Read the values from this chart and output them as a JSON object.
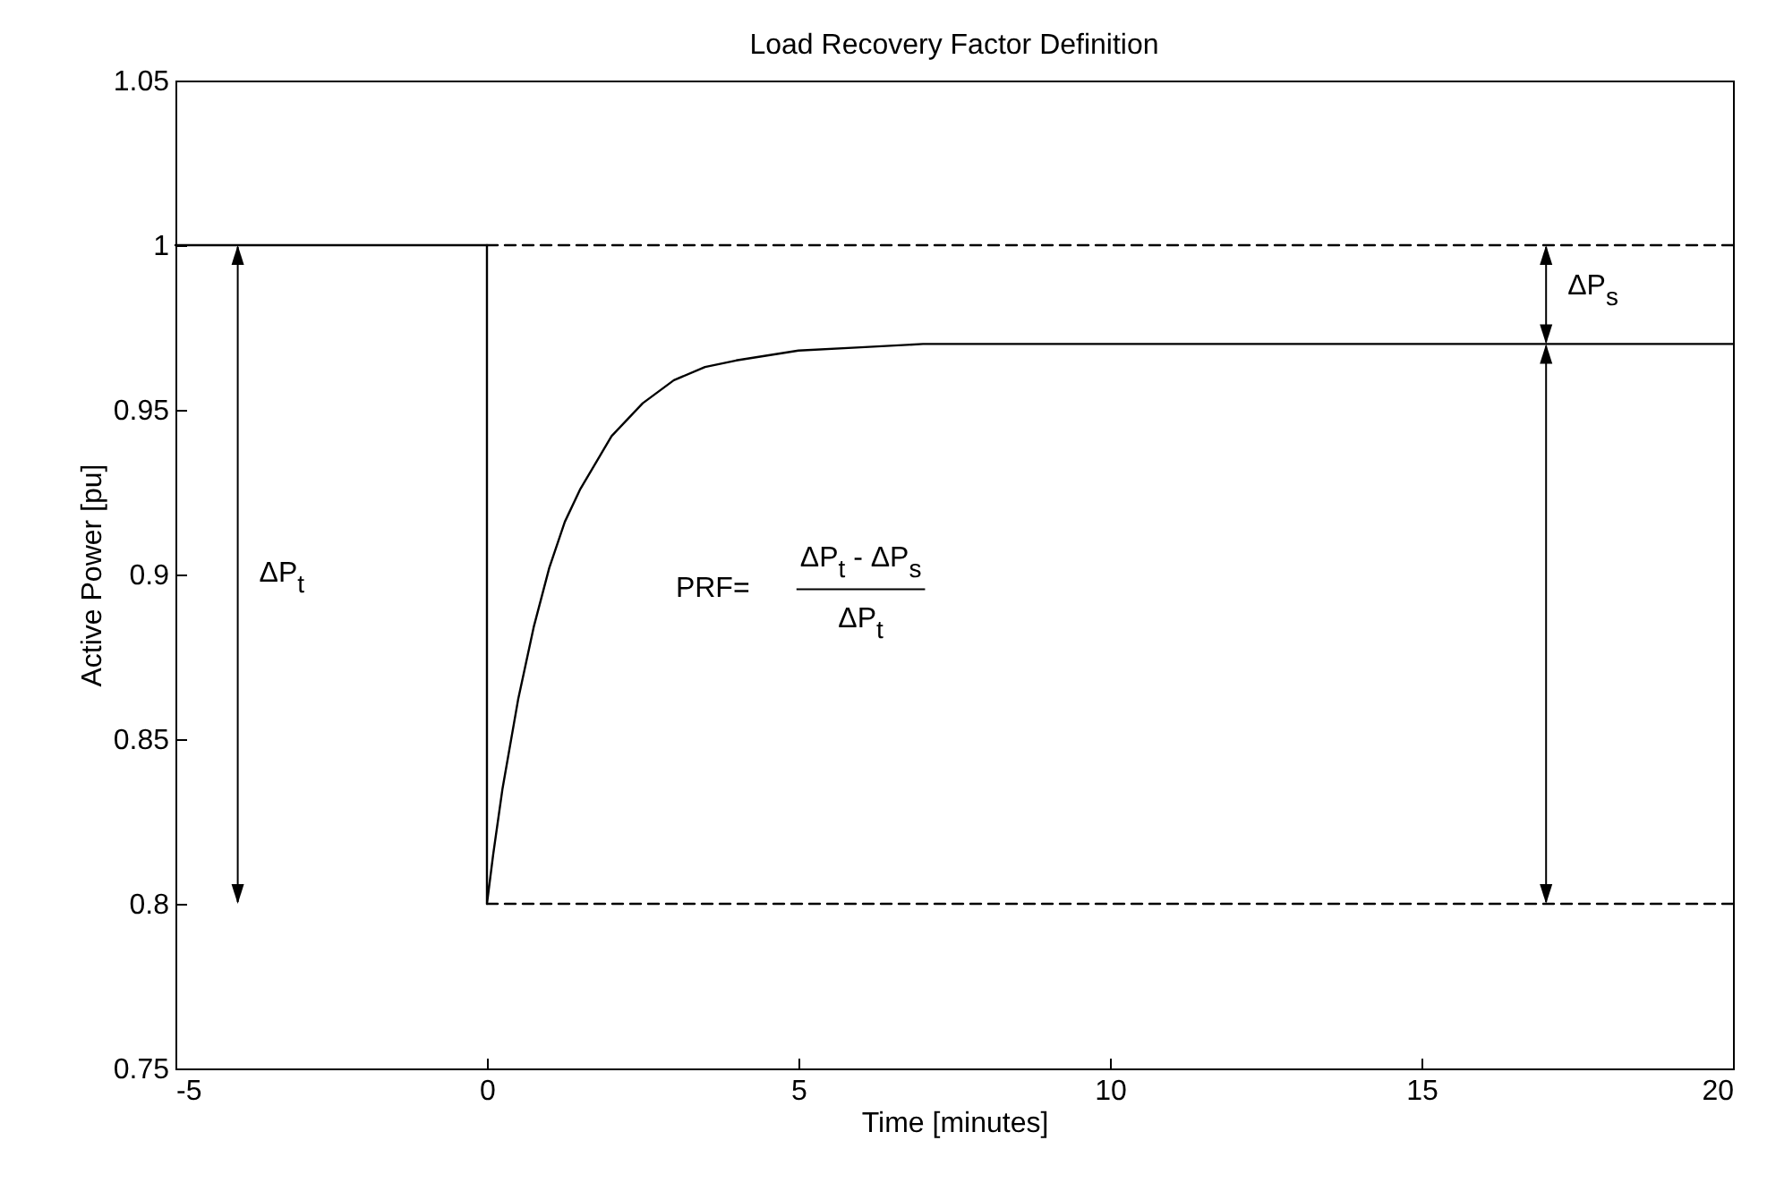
{
  "chart_data": {
    "type": "line",
    "title": "Load Recovery Factor Definition",
    "xlabel": "Time [minutes]",
    "ylabel": "Active Power [pu]",
    "xlim": [
      -5,
      20
    ],
    "xticks": [
      -5,
      0,
      5,
      10,
      15,
      20
    ],
    "ylim": [
      0.75,
      1.05
    ],
    "yticks": [
      0.75,
      0.8,
      0.85,
      0.9,
      0.95,
      1,
      1.05
    ],
    "grid": false,
    "series": [
      {
        "color": "#000000",
        "line_style": "solid",
        "x": [
          -5,
          0,
          0,
          0.1,
          0.25,
          0.5,
          0.75,
          1,
          1.25,
          1.5,
          2,
          2.5,
          3,
          3.5,
          4,
          5,
          6,
          7,
          8,
          10,
          15,
          20
        ],
        "values": [
          1,
          1,
          0.8,
          0.815,
          0.835,
          0.862,
          0.884,
          0.902,
          0.916,
          0.926,
          0.942,
          0.952,
          0.959,
          0.963,
          0.965,
          0.968,
          0.969,
          0.97,
          0.97,
          0.97,
          0.97,
          0.97
        ]
      },
      {
        "color": "#000000",
        "line_style": "dashed",
        "x": [
          0,
          20
        ],
        "values": [
          1,
          1
        ]
      },
      {
        "color": "#000000",
        "line_style": "dashed",
        "x": [
          0,
          20
        ],
        "values": [
          0.8,
          0.8
        ]
      }
    ],
    "annotations": [
      "ΔP$_{t}$",
      {
        "text": "ΔP$_{s}$",
        "x": 17,
        "y": 0.97
      },
      "PRF=",
      "ΔP$_{t}$ - ΔP$_{s}$",
      "ΔP$_{t}$"
    ]
  }
}
